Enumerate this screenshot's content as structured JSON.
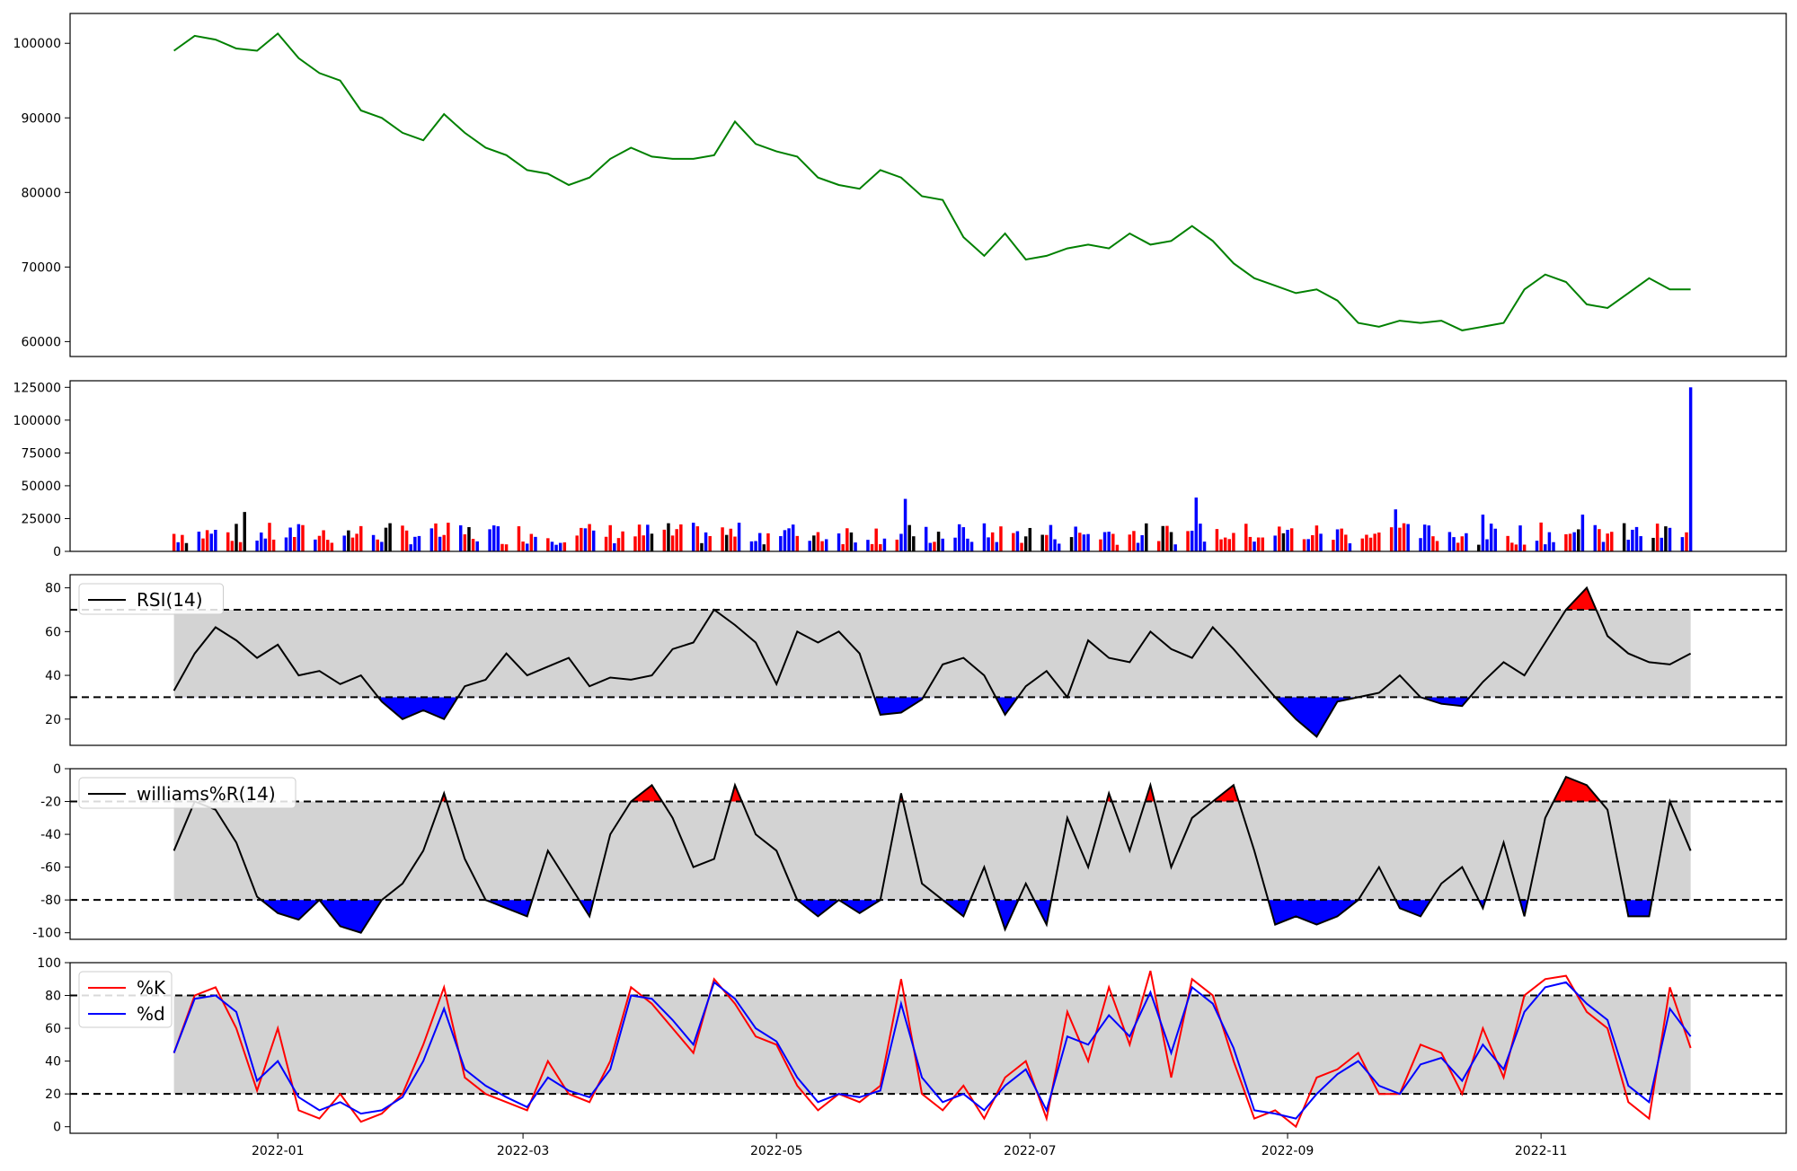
{
  "chart_data": [
    {
      "type": "line",
      "panel": "price",
      "ylim": [
        58000,
        104000
      ],
      "yticks": [
        "60000",
        "70000",
        "80000",
        "90000",
        "100000"
      ],
      "grid": false,
      "series": [
        {
          "color": "#008000",
          "x": [
            "2021-12-07",
            "2021-12-12",
            "2021-12-17",
            "2021-12-22",
            "2021-12-27",
            "2022-01-01",
            "2022-01-06",
            "2022-01-11",
            "2022-01-16",
            "2022-01-21",
            "2022-01-26",
            "2022-01-31",
            "2022-02-05",
            "2022-02-10",
            "2022-02-15",
            "2022-02-20",
            "2022-02-25",
            "2022-03-02",
            "2022-03-07",
            "2022-03-12",
            "2022-03-17",
            "2022-03-22",
            "2022-03-27",
            "2022-04-01",
            "2022-04-06",
            "2022-04-11",
            "2022-04-16",
            "2022-04-21",
            "2022-04-26",
            "2022-05-01",
            "2022-05-06",
            "2022-05-11",
            "2022-05-16",
            "2022-05-21",
            "2022-05-26",
            "2022-05-31",
            "2022-06-05",
            "2022-06-10",
            "2022-06-15",
            "2022-06-20",
            "2022-06-25",
            "2022-06-30",
            "2022-07-05",
            "2022-07-10",
            "2022-07-15",
            "2022-07-20",
            "2022-07-25",
            "2022-07-30",
            "2022-08-04",
            "2022-08-09",
            "2022-08-14",
            "2022-08-19",
            "2022-08-24",
            "2022-08-29",
            "2022-09-03",
            "2022-09-08",
            "2022-09-13",
            "2022-09-18",
            "2022-09-23",
            "2022-09-28",
            "2022-10-03",
            "2022-10-08",
            "2022-10-13",
            "2022-10-18",
            "2022-10-23",
            "2022-10-28",
            "2022-11-02",
            "2022-11-07",
            "2022-11-12",
            "2022-11-17",
            "2022-11-22",
            "2022-11-27",
            "2022-12-02",
            "2022-12-07"
          ],
          "y": [
            99000,
            101000,
            100500,
            99300,
            99000,
            101300,
            98000,
            96000,
            95000,
            91000,
            90000,
            88000,
            87000,
            90500,
            88000,
            86000,
            85000,
            83000,
            82500,
            81000,
            82000,
            84500,
            86000,
            84800,
            84500,
            84500,
            85000,
            89500,
            86500,
            85500,
            84800,
            82000,
            81000,
            80500,
            83000,
            82000,
            79500,
            79000,
            74000,
            71500,
            74500,
            71000,
            71500,
            72500,
            73000,
            72500,
            74500,
            73000,
            73500,
            75500,
            73500,
            70500,
            68500,
            67500,
            66500,
            67000,
            65500,
            62500,
            62000,
            62800,
            62500,
            62800,
            61500,
            62000,
            62500,
            67000,
            69000,
            68000,
            65000,
            64500,
            66500,
            68500,
            67000,
            67000
          ]
        }
      ]
    },
    {
      "type": "bar",
      "panel": "volume",
      "ylim": [
        0,
        130000
      ],
      "yticks": [
        "0",
        "25000",
        "50000",
        "75000",
        "100000",
        "125000"
      ],
      "grid": false,
      "colors": {
        "up": "#ff0000",
        "down": "#0000ff",
        "flat": "#000000"
      },
      "bars": "approximately 260 daily bars, mostly 5000-25000; peaks near 2022-06-01 (about 40000) and 2022-08-10 (about 41000); final bar about 125000",
      "x_start": "2021-12-07",
      "x_end": "2022-12-07",
      "peaks": [
        [
          "2021-12-24",
          30000
        ],
        [
          "2022-06-01",
          40000
        ],
        [
          "2022-08-10",
          41000
        ],
        [
          "2022-09-27",
          32000
        ],
        [
          "2022-10-18",
          28000
        ],
        [
          "2022-11-11",
          28000
        ],
        [
          "2022-12-07",
          125000
        ]
      ]
    },
    {
      "type": "line",
      "panel": "rsi",
      "legend": [
        "RSI(14)"
      ],
      "legend_position": "top-left",
      "ylim": [
        8,
        86
      ],
      "yticks": [
        "20",
        "40",
        "60",
        "80"
      ],
      "levels": [
        30,
        70
      ],
      "grid": false,
      "series": [
        {
          "name": "RSI(14)",
          "color": "#000000",
          "x": [
            "2021-12-07",
            "2021-12-12",
            "2021-12-17",
            "2021-12-22",
            "2021-12-27",
            "2022-01-01",
            "2022-01-06",
            "2022-01-11",
            "2022-01-16",
            "2022-01-21",
            "2022-01-26",
            "2022-01-31",
            "2022-02-05",
            "2022-02-10",
            "2022-02-15",
            "2022-02-20",
            "2022-02-25",
            "2022-03-02",
            "2022-03-07",
            "2022-03-12",
            "2022-03-17",
            "2022-03-22",
            "2022-03-27",
            "2022-04-01",
            "2022-04-06",
            "2022-04-11",
            "2022-04-16",
            "2022-04-21",
            "2022-04-26",
            "2022-05-01",
            "2022-05-06",
            "2022-05-11",
            "2022-05-16",
            "2022-05-21",
            "2022-05-26",
            "2022-05-31",
            "2022-06-05",
            "2022-06-10",
            "2022-06-15",
            "2022-06-20",
            "2022-06-25",
            "2022-06-30",
            "2022-07-05",
            "2022-07-10",
            "2022-07-15",
            "2022-07-20",
            "2022-07-25",
            "2022-07-30",
            "2022-08-04",
            "2022-08-09",
            "2022-08-14",
            "2022-08-19",
            "2022-08-24",
            "2022-08-29",
            "2022-09-03",
            "2022-09-08",
            "2022-09-13",
            "2022-09-18",
            "2022-09-23",
            "2022-09-28",
            "2022-10-03",
            "2022-10-08",
            "2022-10-13",
            "2022-10-18",
            "2022-10-23",
            "2022-10-28",
            "2022-11-02",
            "2022-11-07",
            "2022-11-12",
            "2022-11-17",
            "2022-11-22",
            "2022-11-27",
            "2022-12-02",
            "2022-12-07"
          ],
          "y": [
            33,
            50,
            62,
            56,
            48,
            54,
            40,
            42,
            36,
            40,
            28,
            20,
            24,
            20,
            35,
            38,
            50,
            40,
            44,
            48,
            35,
            39,
            38,
            40,
            52,
            55,
            70,
            63,
            55,
            36,
            60,
            55,
            60,
            50,
            22,
            23,
            29,
            45,
            48,
            40,
            22,
            35,
            42,
            30,
            56,
            48,
            46,
            60,
            52,
            48,
            62,
            52,
            41,
            30,
            20,
            12,
            28,
            30,
            32,
            40,
            30,
            27,
            26,
            37,
            46,
            40,
            55,
            70,
            80,
            58,
            50,
            46,
            45,
            50
          ]
        }
      ]
    },
    {
      "type": "line",
      "panel": "williams",
      "legend": [
        "williams%R(14)"
      ],
      "legend_position": "top-left",
      "ylim": [
        -104,
        0
      ],
      "yticks": [
        "-100",
        "-80",
        "-60",
        "-40",
        "-20",
        "0"
      ],
      "levels": [
        -80,
        -20
      ],
      "grid": false,
      "series": [
        {
          "name": "williams%R(14)",
          "color": "#000000",
          "x": [
            "2021-12-07",
            "2021-12-12",
            "2021-12-17",
            "2021-12-22",
            "2021-12-27",
            "2022-01-01",
            "2022-01-06",
            "2022-01-11",
            "2022-01-16",
            "2022-01-21",
            "2022-01-26",
            "2022-01-31",
            "2022-02-05",
            "2022-02-10",
            "2022-02-15",
            "2022-02-20",
            "2022-02-25",
            "2022-03-02",
            "2022-03-07",
            "2022-03-12",
            "2022-03-17",
            "2022-03-22",
            "2022-03-27",
            "2022-04-01",
            "2022-04-06",
            "2022-04-11",
            "2022-04-16",
            "2022-04-21",
            "2022-04-26",
            "2022-05-01",
            "2022-05-06",
            "2022-05-11",
            "2022-05-16",
            "2022-05-21",
            "2022-05-26",
            "2022-05-31",
            "2022-06-05",
            "2022-06-10",
            "2022-06-15",
            "2022-06-20",
            "2022-06-25",
            "2022-06-30",
            "2022-07-05",
            "2022-07-10",
            "2022-07-15",
            "2022-07-20",
            "2022-07-25",
            "2022-07-30",
            "2022-08-04",
            "2022-08-09",
            "2022-08-14",
            "2022-08-19",
            "2022-08-24",
            "2022-08-29",
            "2022-09-03",
            "2022-09-08",
            "2022-09-13",
            "2022-09-18",
            "2022-09-23",
            "2022-09-28",
            "2022-10-03",
            "2022-10-08",
            "2022-10-13",
            "2022-10-18",
            "2022-10-23",
            "2022-10-28",
            "2022-11-02",
            "2022-11-07",
            "2022-11-12",
            "2022-11-17",
            "2022-11-22",
            "2022-11-27",
            "2022-12-02",
            "2022-12-07"
          ],
          "y": [
            -50,
            -20,
            -25,
            -45,
            -78,
            -88,
            -92,
            -80,
            -96,
            -100,
            -80,
            -70,
            -50,
            -15,
            -55,
            -80,
            -85,
            -90,
            -50,
            -70,
            -90,
            -40,
            -20,
            -10,
            -30,
            -60,
            -55,
            -10,
            -40,
            -50,
            -80,
            -90,
            -80,
            -88,
            -80,
            -15,
            -70,
            -80,
            -90,
            -60,
            -98,
            -70,
            -95,
            -30,
            -60,
            -15,
            -50,
            -10,
            -60,
            -30,
            -20,
            -10,
            -50,
            -95,
            -90,
            -95,
            -90,
            -80,
            -60,
            -85,
            -90,
            -70,
            -60,
            -85,
            -45,
            -90,
            -30,
            -5,
            -10,
            -25,
            -90,
            -90,
            -20,
            -50
          ]
        }
      ]
    },
    {
      "type": "line",
      "panel": "stochastic",
      "legend": [
        "%K",
        "%d"
      ],
      "legend_position": "top-left",
      "ylim": [
        -4,
        100
      ],
      "yticks": [
        "0",
        "20",
        "40",
        "60",
        "80",
        "100"
      ],
      "xticks": [
        "2022-01",
        "2022-03",
        "2022-05",
        "2022-07",
        "2022-09",
        "2022-11"
      ],
      "levels": [
        20,
        80
      ],
      "grid": false,
      "series": [
        {
          "name": "%K",
          "color": "#ff0000",
          "x": [
            "2021-12-07",
            "2021-12-12",
            "2021-12-17",
            "2021-12-22",
            "2021-12-27",
            "2022-01-01",
            "2022-01-06",
            "2022-01-11",
            "2022-01-16",
            "2022-01-21",
            "2022-01-26",
            "2022-01-31",
            "2022-02-05",
            "2022-02-10",
            "2022-02-15",
            "2022-02-20",
            "2022-02-25",
            "2022-03-02",
            "2022-03-07",
            "2022-03-12",
            "2022-03-17",
            "2022-03-22",
            "2022-03-27",
            "2022-04-01",
            "2022-04-06",
            "2022-04-11",
            "2022-04-16",
            "2022-04-21",
            "2022-04-26",
            "2022-05-01",
            "2022-05-06",
            "2022-05-11",
            "2022-05-16",
            "2022-05-21",
            "2022-05-26",
            "2022-05-31",
            "2022-06-05",
            "2022-06-10",
            "2022-06-15",
            "2022-06-20",
            "2022-06-25",
            "2022-06-30",
            "2022-07-05",
            "2022-07-10",
            "2022-07-15",
            "2022-07-20",
            "2022-07-25",
            "2022-07-30",
            "2022-08-04",
            "2022-08-09",
            "2022-08-14",
            "2022-08-19",
            "2022-08-24",
            "2022-08-29",
            "2022-09-03",
            "2022-09-08",
            "2022-09-13",
            "2022-09-18",
            "2022-09-23",
            "2022-09-28",
            "2022-10-03",
            "2022-10-08",
            "2022-10-13",
            "2022-10-18",
            "2022-10-23",
            "2022-10-28",
            "2022-11-02",
            "2022-11-07",
            "2022-11-12",
            "2022-11-17",
            "2022-11-22",
            "2022-11-27",
            "2022-12-02",
            "2022-12-07"
          ],
          "y": [
            45,
            80,
            85,
            60,
            22,
            60,
            10,
            5,
            20,
            3,
            8,
            20,
            50,
            85,
            30,
            20,
            15,
            10,
            40,
            20,
            15,
            40,
            85,
            75,
            60,
            45,
            90,
            75,
            55,
            50,
            25,
            10,
            20,
            15,
            25,
            90,
            20,
            10,
            25,
            5,
            30,
            40,
            5,
            70,
            40,
            85,
            50,
            95,
            30,
            90,
            80,
            40,
            5,
            10,
            0,
            30,
            35,
            45,
            20,
            20,
            50,
            45,
            20,
            60,
            30,
            80,
            90,
            92,
            70,
            60,
            15,
            5,
            85,
            48
          ]
        },
        {
          "name": "%d",
          "color": "#0000ff",
          "x": [
            "2021-12-07",
            "2021-12-12",
            "2021-12-17",
            "2021-12-22",
            "2021-12-27",
            "2022-01-01",
            "2022-01-06",
            "2022-01-11",
            "2022-01-16",
            "2022-01-21",
            "2022-01-26",
            "2022-01-31",
            "2022-02-05",
            "2022-02-10",
            "2022-02-15",
            "2022-02-20",
            "2022-02-25",
            "2022-03-02",
            "2022-03-07",
            "2022-03-12",
            "2022-03-17",
            "2022-03-22",
            "2022-03-27",
            "2022-04-01",
            "2022-04-06",
            "2022-04-11",
            "2022-04-16",
            "2022-04-21",
            "2022-04-26",
            "2022-05-01",
            "2022-05-06",
            "2022-05-11",
            "2022-05-16",
            "2022-05-21",
            "2022-05-26",
            "2022-05-31",
            "2022-06-05",
            "2022-06-10",
            "2022-06-15",
            "2022-06-20",
            "2022-06-25",
            "2022-06-30",
            "2022-07-05",
            "2022-07-10",
            "2022-07-15",
            "2022-07-20",
            "2022-07-25",
            "2022-07-30",
            "2022-08-04",
            "2022-08-09",
            "2022-08-14",
            "2022-08-19",
            "2022-08-24",
            "2022-08-29",
            "2022-09-03",
            "2022-09-08",
            "2022-09-13",
            "2022-09-18",
            "2022-09-23",
            "2022-09-28",
            "2022-10-03",
            "2022-10-08",
            "2022-10-13",
            "2022-10-18",
            "2022-10-23",
            "2022-10-28",
            "2022-11-02",
            "2022-11-07",
            "2022-11-12",
            "2022-11-17",
            "2022-11-22",
            "2022-11-27",
            "2022-12-02",
            "2022-12-07"
          ],
          "y": [
            45,
            78,
            80,
            70,
            28,
            40,
            18,
            10,
            15,
            8,
            10,
            18,
            40,
            72,
            35,
            25,
            18,
            12,
            30,
            22,
            18,
            35,
            80,
            78,
            65,
            50,
            88,
            78,
            60,
            52,
            30,
            15,
            20,
            18,
            22,
            75,
            30,
            15,
            20,
            10,
            25,
            35,
            10,
            55,
            50,
            68,
            55,
            82,
            45,
            85,
            75,
            48,
            10,
            8,
            5,
            20,
            32,
            40,
            25,
            20,
            38,
            42,
            28,
            50,
            35,
            70,
            85,
            88,
            75,
            65,
            25,
            15,
            72,
            55
          ]
        }
      ]
    }
  ]
}
